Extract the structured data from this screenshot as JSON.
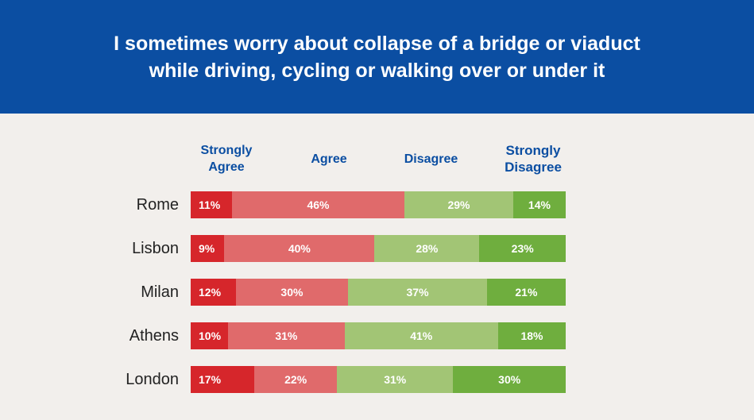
{
  "title": {
    "line1": "I sometimes worry about collapse of a bridge or viaduct",
    "line2": "while driving, cycling or walking over or under it"
  },
  "colors": {
    "header_bg": "#0b4ea2",
    "strongly_agree": "#d6262b",
    "agree": "#e06a6b",
    "disagree": "#a2c575",
    "strongly_disagree": "#6fae3e"
  },
  "legend": {
    "strongly_agree_l1": "Strongly",
    "strongly_agree_l2": "Agree",
    "agree": "Agree",
    "disagree": "Disagree",
    "strongly_disagree_l1": "Strongly",
    "strongly_disagree_l2": "Disagree"
  },
  "chart_data": {
    "type": "bar",
    "orientation": "horizontal",
    "stacked": true,
    "title": "I sometimes worry about collapse of a bridge or viaduct while driving, cycling or walking over or under it",
    "categories": [
      "Rome",
      "Lisbon",
      "Milan",
      "Athens",
      "London"
    ],
    "series": [
      {
        "name": "Strongly Agree",
        "values": [
          11,
          9,
          12,
          10,
          17
        ]
      },
      {
        "name": "Agree",
        "values": [
          46,
          40,
          30,
          31,
          22
        ]
      },
      {
        "name": "Disagree",
        "values": [
          29,
          28,
          37,
          41,
          31
        ]
      },
      {
        "name": "Strongly Disagree",
        "values": [
          14,
          23,
          21,
          18,
          30
        ]
      }
    ],
    "value_suffix": "%",
    "legend_position": "top"
  }
}
